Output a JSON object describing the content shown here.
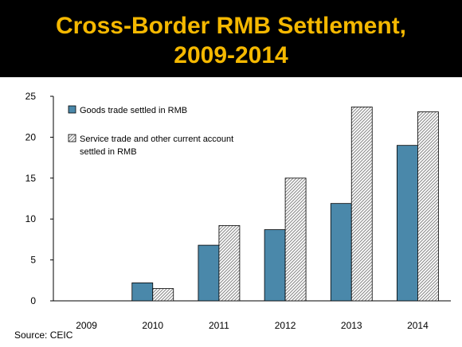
{
  "header": {
    "title_line1": "Cross-Border RMB Settlement,",
    "title_line2": "2009-2014"
  },
  "footer": {
    "source": "Source: CEIC"
  },
  "colors": {
    "banner_bg": "#000000",
    "title": "#f5b800",
    "goods_bar": "#4a88aa",
    "service_bar_pattern": "#8a8a8a"
  },
  "chart_data": {
    "type": "bar",
    "categories": [
      "2009",
      "2010",
      "2011",
      "2012",
      "2013",
      "2014"
    ],
    "series": [
      {
        "name": "Goods trade settled in RMB",
        "values": [
          0,
          2.2,
          6.8,
          8.7,
          11.9,
          19.0
        ],
        "style": "solid"
      },
      {
        "name": "Service trade and other current account settled in RMB",
        "values": [
          0,
          1.5,
          9.2,
          15.0,
          23.7,
          23.1
        ],
        "style": "hatched"
      }
    ],
    "ylim": [
      0,
      25
    ],
    "yticks": [
      "0",
      "5",
      "10",
      "15",
      "20",
      "25"
    ],
    "ytick_values": [
      0,
      5,
      10,
      15,
      20,
      25
    ],
    "legend_position": "top-left",
    "legend_labels": [
      [
        "Goods trade settled in RMB"
      ],
      [
        "Service trade and other current account",
        "settled in RMB"
      ]
    ],
    "grid": false
  }
}
